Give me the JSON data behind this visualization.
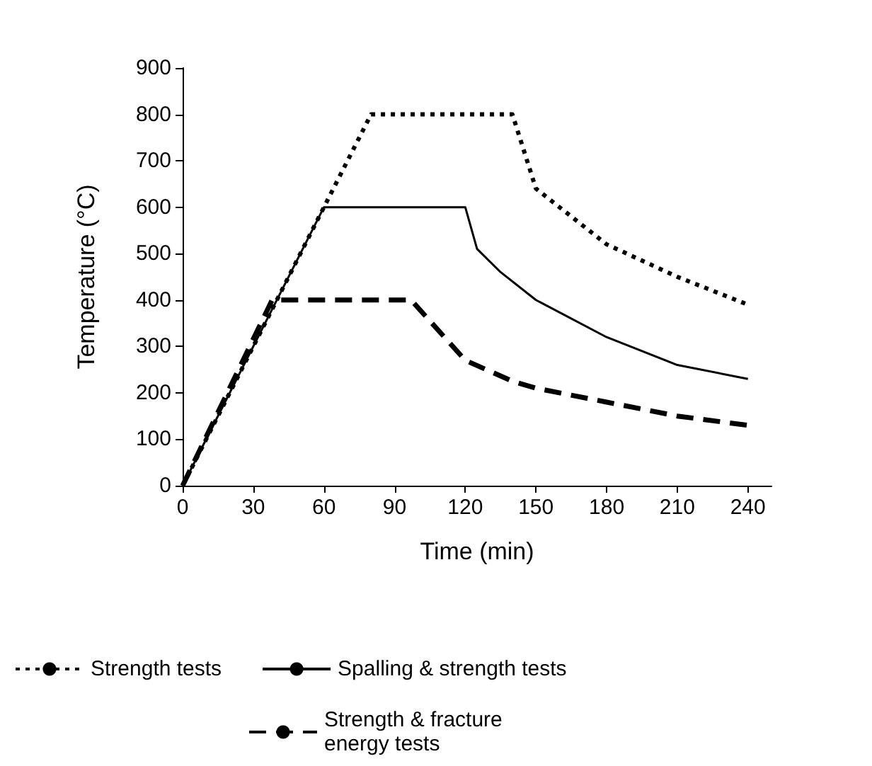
{
  "chart_data": {
    "type": "line",
    "xlabel": "Time (min)",
    "ylabel": "Temperature (°C)",
    "xlim": [
      0,
      250
    ],
    "xticks": [
      0,
      30,
      60,
      90,
      120,
      150,
      180,
      210,
      240
    ],
    "ylim": [
      0,
      900
    ],
    "yticks": [
      0,
      100,
      200,
      300,
      400,
      500,
      600,
      700,
      800,
      900
    ],
    "grid": false,
    "legend": "bottom",
    "marker": "none",
    "series": [
      {
        "name": "Strength tests",
        "color": "#000000",
        "line_style": "dotted",
        "x": [
          0,
          80,
          140,
          150,
          180,
          210,
          240
        ],
        "values": [
          0,
          800,
          800,
          640,
          520,
          450,
          390
        ]
      },
      {
        "name": "Spalling & strength tests",
        "color": "#000000",
        "line_style": "solid",
        "x": [
          0,
          60,
          120,
          125,
          135,
          150,
          180,
          210,
          240
        ],
        "values": [
          0,
          600,
          600,
          510,
          460,
          400,
          320,
          260,
          230
        ]
      },
      {
        "name": "Strength & fracture energy tests",
        "color": "#000000",
        "line_style": "dashed",
        "x": [
          0,
          38,
          97,
          120,
          140,
          150,
          180,
          210,
          240
        ],
        "values": [
          0,
          400,
          400,
          270,
          225,
          210,
          180,
          150,
          130
        ]
      }
    ]
  }
}
